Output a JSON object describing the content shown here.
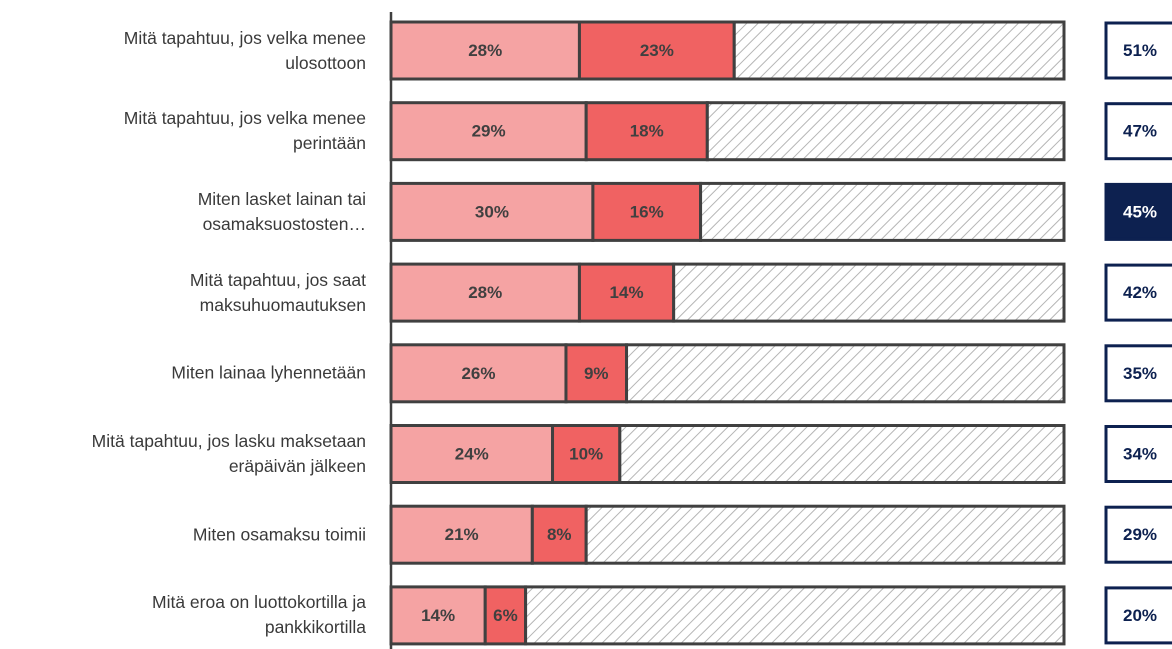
{
  "chart_data": {
    "type": "stacked_bar_h",
    "categories": [
      "Mitä tapahtuu, jos velka menee\nulosottoon",
      "Mitä tapahtuu, jos velka menee\nperintään",
      "Miten lasket lainan tai\nosamaksuostosten…",
      "Mitä tapahtuu, jos saat\nmaksuhuomautuksen",
      "Miten lainaa lyhennetään",
      "Mitä tapahtuu, jos lasku maksetaan\neräpäivän jälkeen",
      "Miten osamaksu toimii",
      "Mitä eroa on luottokortilla ja\npankkikortilla"
    ],
    "series": [
      {
        "color": "#f5a3a3",
        "values": [
          28,
          29,
          30,
          28,
          26,
          24,
          21,
          14
        ],
        "value_labels": [
          "28%",
          "29%",
          "30%",
          "28%",
          "26%",
          "24%",
          "21%",
          "14%"
        ]
      },
      {
        "color": "#f06262",
        "values": [
          23,
          18,
          16,
          14,
          9,
          10,
          8,
          6
        ],
        "value_labels": [
          "23%",
          "18%",
          "16%",
          "14%",
          "9%",
          "10%",
          "8%",
          "6%"
        ]
      }
    ],
    "totals": {
      "values": [
        51,
        47,
        45,
        42,
        35,
        34,
        29,
        20
      ],
      "value_labels": [
        "51%",
        "47%",
        "45%",
        "42%",
        "35%",
        "34%",
        "29%",
        "20%"
      ],
      "color": "#0d2150",
      "highlight": 2
    },
    "xlim": [
      0,
      100
    ]
  }
}
